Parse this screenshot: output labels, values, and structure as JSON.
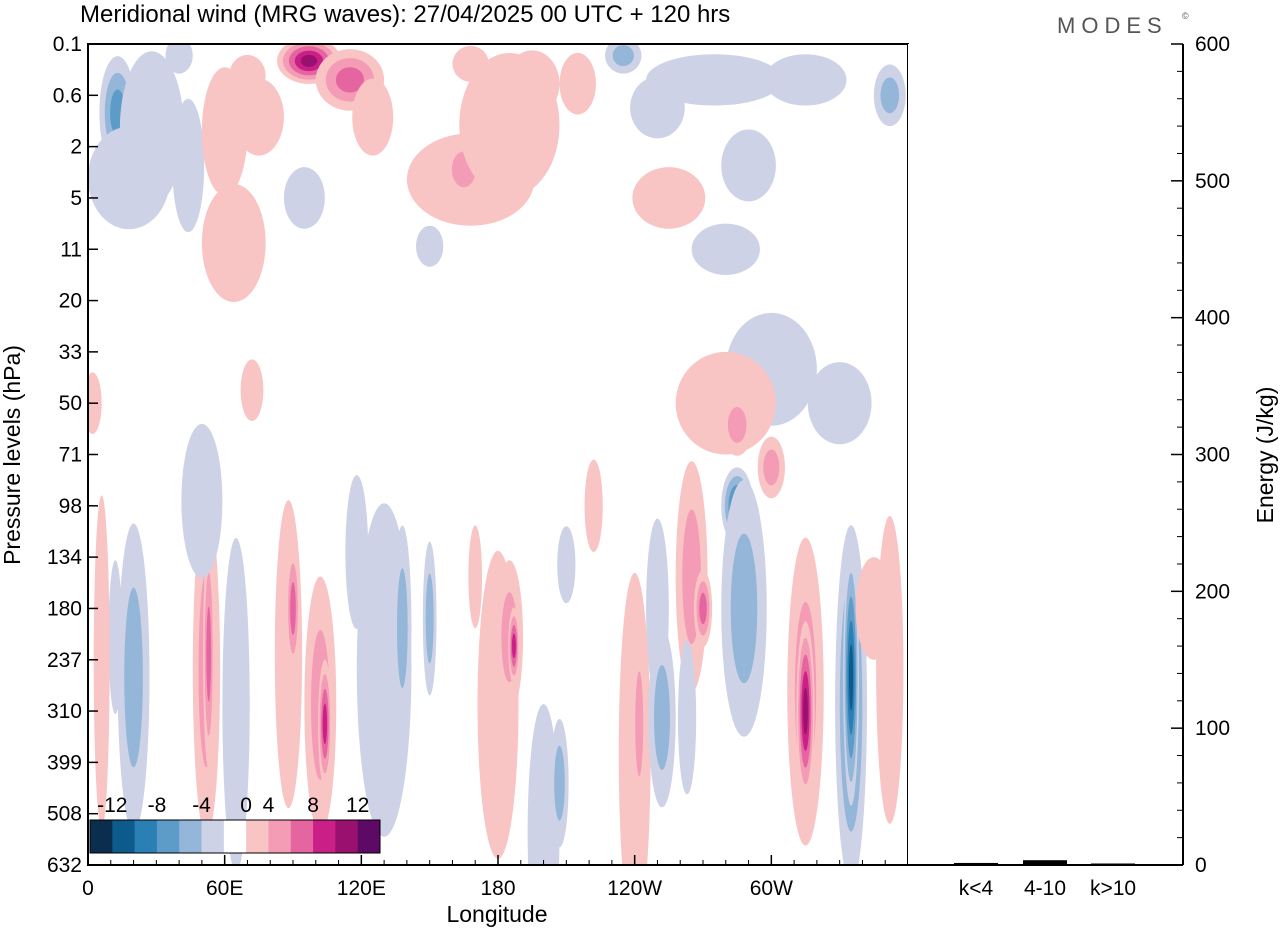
{
  "chart_data": [
    {
      "type": "heatmap",
      "title": "Meridional wind (MRG waves):  27/04/2025  00 UTC  + 120 hrs",
      "xlabel": "Longitude",
      "ylabel": "Pressure levels (hPa)",
      "x_ticks": [
        "0",
        "60E",
        "120E",
        "180",
        "120W",
        "60W"
      ],
      "x_tick_values": [
        0,
        60,
        120,
        180,
        240,
        300
      ],
      "xlim": [
        0,
        360
      ],
      "y_ticks": [
        "0.1",
        "0.6",
        "2",
        "5",
        "11",
        "20",
        "33",
        "50",
        "71",
        "98",
        "134",
        "180",
        "237",
        "310",
        "399",
        "508",
        "632"
      ],
      "y_scale": "model levels (top 0.1 hPa, bottom 632 hPa)",
      "colorbar": {
        "ticks": [
          "-12",
          "-8",
          "-4",
          "0",
          "4",
          "8",
          "12"
        ],
        "levels": [
          -14,
          -12,
          -10,
          -8,
          -6,
          -4,
          -2,
          2,
          4,
          6,
          8,
          10,
          12,
          14
        ],
        "colors": [
          "#0b2e4f",
          "#0d5a8c",
          "#2a7fb5",
          "#5d9bc8",
          "#94b6d8",
          "#cdd2e6",
          "#ffffff",
          "#f9c4c4",
          "#f49bb6",
          "#e565a0",
          "#c91f86",
          "#99106e",
          "#5c0a66"
        ],
        "placement": "bottom-left"
      },
      "blobs": [
        {
          "lon": 13,
          "p": 0.9,
          "w": 8,
          "h": 2.2,
          "v": -7
        },
        {
          "lon": 28,
          "p": 1.3,
          "w": 14,
          "h": 3.0,
          "v": -2
        },
        {
          "lon": 18,
          "p": 3.5,
          "w": 18,
          "h": 2.0,
          "v": -1.5
        },
        {
          "lon": 44,
          "p": 2.8,
          "w": 7,
          "h": 2.6,
          "v": -2
        },
        {
          "lon": 40,
          "p": 0.15,
          "w": 6,
          "h": 0.7,
          "v": -2.5
        },
        {
          "lon": 60,
          "p": 1.4,
          "w": 10,
          "h": 2.5,
          "v": 2.5
        },
        {
          "lon": 75,
          "p": 1.0,
          "w": 11,
          "h": 1.5,
          "v": 3.5
        },
        {
          "lon": 70,
          "p": 0.3,
          "w": 8,
          "h": 0.8,
          "v": 2.5
        },
        {
          "lon": 97,
          "p": 0.18,
          "w": 14,
          "h": 0.9,
          "v": 11
        },
        {
          "lon": 115,
          "p": 0.35,
          "w": 15,
          "h": 1.2,
          "v": 6
        },
        {
          "lon": 125,
          "p": 1.0,
          "w": 9,
          "h": 1.5,
          "v": 2.5
        },
        {
          "lon": 168,
          "p": 3.6,
          "w": 28,
          "h": 1.8,
          "v": 3
        },
        {
          "lon": 165,
          "p": 3.0,
          "w": 9,
          "h": 1.2,
          "v": 5
        },
        {
          "lon": 185,
          "p": 1.2,
          "w": 22,
          "h": 2.8,
          "v": 3
        },
        {
          "lon": 195,
          "p": 0.4,
          "w": 12,
          "h": 1.3,
          "v": 3.5
        },
        {
          "lon": 168,
          "p": 0.2,
          "w": 8,
          "h": 0.7,
          "v": 2.5
        },
        {
          "lon": 215,
          "p": 0.4,
          "w": 8,
          "h": 1.2,
          "v": 2
        },
        {
          "lon": 235,
          "p": 0.15,
          "w": 8,
          "h": 0.7,
          "v": -4
        },
        {
          "lon": 250,
          "p": 0.8,
          "w": 12,
          "h": 1.2,
          "v": -2.5
        },
        {
          "lon": 275,
          "p": 0.35,
          "w": 30,
          "h": 1.0,
          "v": -2
        },
        {
          "lon": 315,
          "p": 0.35,
          "w": 18,
          "h": 1.0,
          "v": -2
        },
        {
          "lon": 352,
          "p": 0.6,
          "w": 7,
          "h": 1.2,
          "v": -5
        },
        {
          "lon": 95,
          "p": 5.0,
          "w": 9,
          "h": 1.2,
          "v": -3.5
        },
        {
          "lon": 255,
          "p": 5.0,
          "w": 16,
          "h": 1.2,
          "v": 2.5
        },
        {
          "lon": 290,
          "p": 2.8,
          "w": 12,
          "h": 1.4,
          "v": -2
        },
        {
          "lon": 280,
          "p": 11.0,
          "w": 15,
          "h": 1.0,
          "v": -2
        },
        {
          "lon": 64,
          "p": 10.0,
          "w": 14,
          "h": 2.3,
          "v": 3
        },
        {
          "lon": 150,
          "p": 10.5,
          "w": 6,
          "h": 0.8,
          "v": -2
        },
        {
          "lon": 300,
          "p": 38.0,
          "w": 20,
          "h": 2.2,
          "v": -2.5
        },
        {
          "lon": 330,
          "p": 50.0,
          "w": 14,
          "h": 1.6,
          "v": -2
        },
        {
          "lon": 280,
          "p": 50.0,
          "w": 22,
          "h": 2.0,
          "v": 2.5
        },
        {
          "lon": 285,
          "p": 58.0,
          "w": 7,
          "h": 1.2,
          "v": 5
        },
        {
          "lon": 300,
          "p": 77.0,
          "w": 6,
          "h": 1.2,
          "v": 5
        },
        {
          "lon": 285,
          "p": 98.0,
          "w": 7,
          "h": 1.5,
          "v": -9
        },
        {
          "lon": 288,
          "p": 180.0,
          "w": 10,
          "h": 5.0,
          "v": -4
        },
        {
          "lon": 265,
          "p": 150.0,
          "w": 7,
          "h": 4.5,
          "v": 5
        },
        {
          "lon": 270,
          "p": 180.0,
          "w": 4,
          "h": 1.5,
          "v": 7
        },
        {
          "lon": 250,
          "p": 180.0,
          "w": 5,
          "h": 3.5,
          "v": -2.5
        },
        {
          "lon": 315,
          "p": 280.0,
          "w": 8,
          "h": 6.0,
          "v": 4
        },
        {
          "lon": 315,
          "p": 310.0,
          "w": 4,
          "h": 3.5,
          "v": 10
        },
        {
          "lon": 335,
          "p": 300.0,
          "w": 7,
          "h": 7.0,
          "v": -6
        },
        {
          "lon": 335,
          "p": 260.0,
          "w": 3.5,
          "h": 5.0,
          "v": -11
        },
        {
          "lon": 352,
          "p": 250.0,
          "w": 6,
          "h": 6.0,
          "v": 2.5
        },
        {
          "lon": 345,
          "p": 180.0,
          "w": 8,
          "h": 2.0,
          "v": 2
        },
        {
          "lon": 20,
          "p": 260.0,
          "w": 7,
          "h": 6.0,
          "v": -4.5
        },
        {
          "lon": 12,
          "p": 210.0,
          "w": 3,
          "h": 3.0,
          "v": -2
        },
        {
          "lon": 6,
          "p": 240.0,
          "w": 3.5,
          "h": 6.5,
          "v": 2
        },
        {
          "lon": 52,
          "p": 250.0,
          "w": 6,
          "h": 6.5,
          "v": 4
        },
        {
          "lon": 53,
          "p": 230.0,
          "w": 2.5,
          "h": 4.5,
          "v": 7
        },
        {
          "lon": 65,
          "p": 300.0,
          "w": 6,
          "h": 6.5,
          "v": -3.5
        },
        {
          "lon": 50,
          "p": 95.0,
          "w": 9,
          "h": 3.0,
          "v": -2
        },
        {
          "lon": 88,
          "p": 230.0,
          "w": 6,
          "h": 6.0,
          "v": 2.5
        },
        {
          "lon": 90,
          "p": 180.0,
          "w": 3,
          "h": 2.5,
          "v": 6
        },
        {
          "lon": 102,
          "p": 300.0,
          "w": 7,
          "h": 5.0,
          "v": 4
        },
        {
          "lon": 104,
          "p": 330.0,
          "w": 3,
          "h": 2.5,
          "v": 8
        },
        {
          "lon": 130,
          "p": 250.0,
          "w": 12,
          "h": 6.5,
          "v": -2.5
        },
        {
          "lon": 138,
          "p": 200.0,
          "w": 4,
          "h": 4.0,
          "v": -5
        },
        {
          "lon": 150,
          "p": 190.0,
          "w": 3,
          "h": 3.0,
          "v": -4.5
        },
        {
          "lon": 118,
          "p": 130.0,
          "w": 5,
          "h": 3.0,
          "v": -2
        },
        {
          "lon": 180,
          "p": 300.0,
          "w": 9,
          "h": 6.0,
          "v": 2.5
        },
        {
          "lon": 185,
          "p": 210.0,
          "w": 6,
          "h": 3.0,
          "v": 4.5
        },
        {
          "lon": 187,
          "p": 220.0,
          "w": 2.5,
          "h": 1.5,
          "v": 8
        },
        {
          "lon": 200,
          "p": 550.0,
          "w": 7,
          "h": 5.0,
          "v": -2.5
        },
        {
          "lon": 207,
          "p": 440.0,
          "w": 4,
          "h": 2.5,
          "v": -5
        },
        {
          "lon": 240,
          "p": 380.0,
          "w": 7,
          "h": 7.0,
          "v": 2.5
        },
        {
          "lon": 242,
          "p": 330.0,
          "w": 3,
          "h": 3.5,
          "v": 5
        },
        {
          "lon": 252,
          "p": 320.0,
          "w": 6,
          "h": 3.5,
          "v": -4
        },
        {
          "lon": 263,
          "p": 320.0,
          "w": 4,
          "h": 3.0,
          "v": -2
        },
        {
          "lon": 2,
          "p": 50.0,
          "w": 4,
          "h": 1.2,
          "v": 2
        },
        {
          "lon": 72,
          "p": 45.0,
          "w": 5,
          "h": 1.2,
          "v": 2
        },
        {
          "lon": 222,
          "p": 98.0,
          "w": 4,
          "h": 1.8,
          "v": 2
        },
        {
          "lon": 210,
          "p": 140.0,
          "w": 4,
          "h": 1.5,
          "v": -2
        },
        {
          "lon": 170,
          "p": 150.0,
          "w": 3,
          "h": 2.0,
          "v": 2
        }
      ]
    },
    {
      "type": "bar",
      "categories": [
        "k<4",
        "4-10",
        "k>10"
      ],
      "values": [
        1.5,
        3.5,
        0.5
      ],
      "ylabel": "Energy (J/kg)",
      "ylim": [
        0,
        600
      ],
      "y_ticks": [
        "0",
        "100",
        "200",
        "300",
        "400",
        "500",
        "600"
      ],
      "y_tick_values": [
        0,
        100,
        200,
        300,
        400,
        500,
        600
      ],
      "color": "#000000"
    }
  ],
  "branding": {
    "logo_text": "MODES",
    "logo_mark": "©"
  }
}
